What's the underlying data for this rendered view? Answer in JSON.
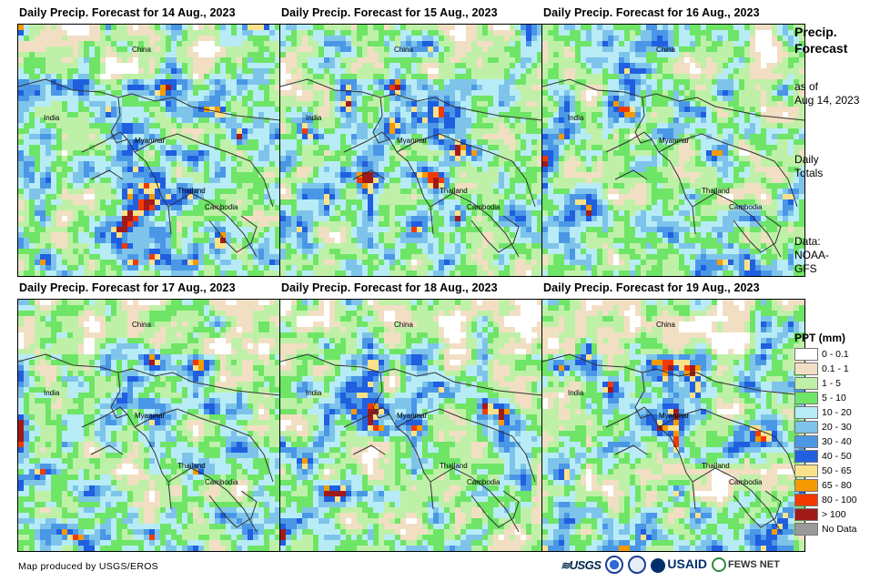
{
  "panels": [
    {
      "title": "Daily Precip. Forecast for 14 Aug., 2023",
      "seed": 11,
      "wet": 0.55
    },
    {
      "title": "Daily Precip. Forecast for 15 Aug., 2023",
      "seed": 23,
      "wet": 0.5
    },
    {
      "title": "Daily Precip. Forecast for 16 Aug., 2023",
      "seed": 37,
      "wet": 0.45
    },
    {
      "title": "Daily Precip. Forecast for 17 Aug., 2023",
      "seed": 41,
      "wet": 0.4
    },
    {
      "title": "Daily Precip. Forecast for 18 Aug., 2023",
      "seed": 53,
      "wet": 0.42
    },
    {
      "title": "Daily Precip. Forecast for 19 Aug., 2023",
      "seed": 67,
      "wet": 0.5
    }
  ],
  "map_labels": {
    "china": "China",
    "india": "India",
    "myanmar": "Myanmar",
    "thailand": "Thailand",
    "cambodia": "Cambodia"
  },
  "sidebar": {
    "title_line1": "Precip.",
    "title_line2": "Forecast",
    "asof_line1": "as of",
    "asof_line2": "Aug 14, 2023",
    "daily_line1": "Daily",
    "daily_line2": "Totals",
    "data_line1": "Data:",
    "data_line2": "NOAA-",
    "data_line3": "GFS"
  },
  "legend": {
    "title": "PPT (mm)",
    "items": [
      {
        "label": "0 - 0.1",
        "color": "#ffffff"
      },
      {
        "label": "0.1 - 1",
        "color": "#f2dfc3"
      },
      {
        "label": "1 - 5",
        "color": "#bff0a8"
      },
      {
        "label": "5 - 10",
        "color": "#6ee566"
      },
      {
        "label": "10 - 20",
        "color": "#b7ecf7"
      },
      {
        "label": "20 - 30",
        "color": "#7ec4ea"
      },
      {
        "label": "30 - 40",
        "color": "#4a97e6"
      },
      {
        "label": "40 - 50",
        "color": "#1f5fe0"
      },
      {
        "label": "50 - 65",
        "color": "#fae28a"
      },
      {
        "label": "65 - 80",
        "color": "#f59a00"
      },
      {
        "label": "80 - 100",
        "color": "#f23a00"
      },
      {
        "label": "> 100",
        "color": "#a11a1a"
      },
      {
        "label": "No Data",
        "color": "#999999"
      }
    ]
  },
  "footer": {
    "credit": "Map produced by USGS/EROS",
    "logo_usgs": "USGS",
    "logo_usaid": "USAID",
    "logo_fews": "FEWS NET"
  }
}
